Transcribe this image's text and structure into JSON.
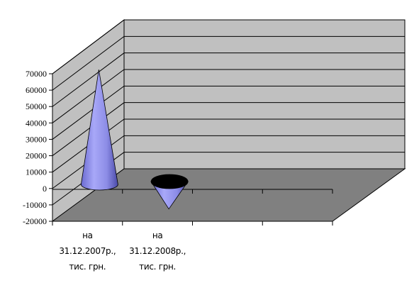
{
  "chart_data": {
    "type": "bar",
    "shape": "cone",
    "style": "3d",
    "categories": [
      [
        "на",
        "31.12.2007р.,",
        "тис. грн."
      ],
      [
        "на",
        "31.12.2008р.,",
        "тис. грн."
      ]
    ],
    "series": [
      {
        "values": [
          70000,
          -15000
        ]
      }
    ],
    "ylim": [
      -20000,
      70000
    ],
    "yticks": [
      70000,
      60000,
      50000,
      40000,
      30000,
      20000,
      10000,
      0,
      -10000,
      -20000
    ],
    "grid": true,
    "legend": "none",
    "colors": {
      "cone": "#9c9cf0",
      "cone_dark": "#5a5ab4",
      "cone_top": "#000000",
      "back_wall": "#c0c0c0",
      "side_wall": "#c0c0c0",
      "floor": "#808080",
      "gridline": "#000000"
    }
  }
}
